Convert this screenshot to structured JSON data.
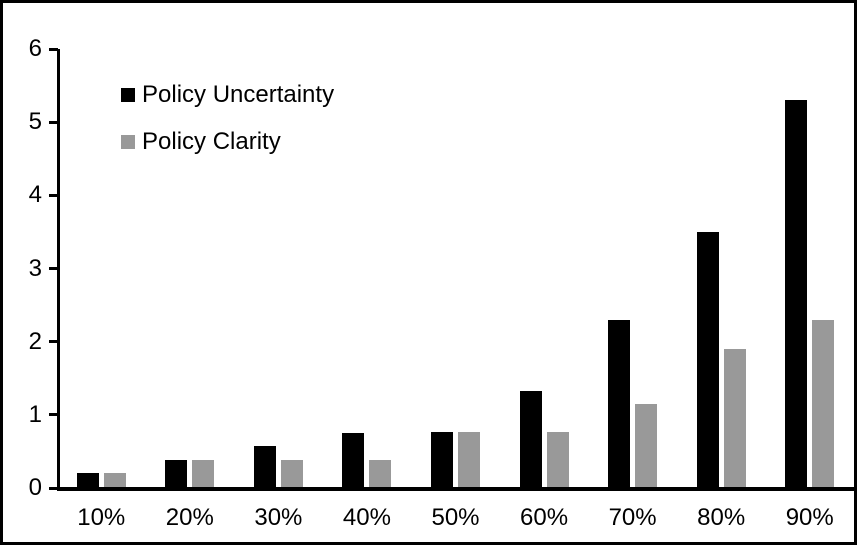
{
  "chart_data": {
    "type": "bar",
    "title": "",
    "xlabel": "",
    "ylabel": "",
    "categories": [
      "10%",
      "20%",
      "30%",
      "40%",
      "50%",
      "60%",
      "70%",
      "80%",
      "90%"
    ],
    "series": [
      {
        "name": "Policy Uncertainty",
        "color": "#000000",
        "values": [
          0.2,
          0.38,
          0.57,
          0.75,
          0.77,
          1.33,
          2.3,
          3.5,
          5.3
        ]
      },
      {
        "name": "Policy Clarity",
        "color": "#999999",
        "values": [
          0.2,
          0.38,
          0.38,
          0.38,
          0.77,
          0.77,
          1.15,
          1.9,
          2.3
        ]
      }
    ],
    "ylim": [
      0,
      6
    ],
    "yticks": [
      0,
      1,
      2,
      3,
      4,
      5,
      6
    ],
    "grid": false,
    "legend_position": "top-left-inside",
    "frame_border_color": "#000000",
    "background_color": "#ffffff"
  }
}
